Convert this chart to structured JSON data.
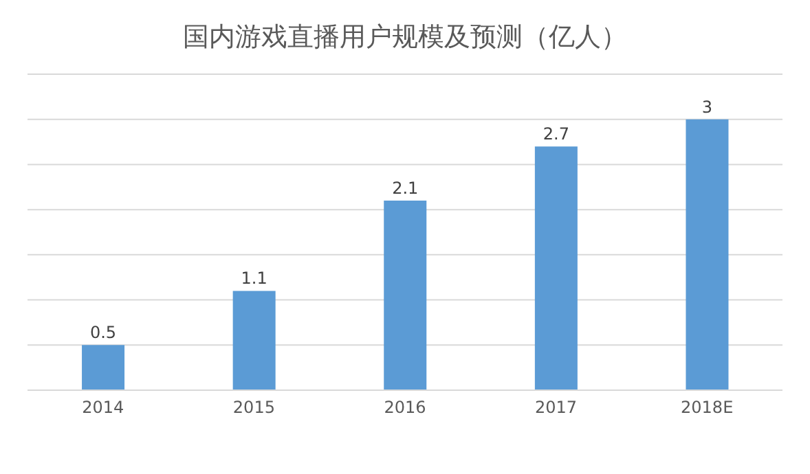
{
  "chart_data": {
    "type": "bar",
    "title": "国内游戏直播用户规模及预测（亿人）",
    "categories": [
      "2014",
      "2015",
      "2016",
      "2017",
      "2018E"
    ],
    "values": [
      0.5,
      1.1,
      2.1,
      2.7,
      3
    ],
    "color": "#5b9bd5",
    "data_labels": true,
    "ylim": [
      0,
      3.5
    ],
    "yticks": [
      {
        "value": 0,
        "label": null
      },
      {
        "value": 0.5,
        "label": null
      },
      {
        "value": 1,
        "label": null
      },
      {
        "value": 1.5,
        "label": null
      },
      {
        "value": 2,
        "label": null
      },
      {
        "value": 2.5,
        "label": null
      },
      {
        "value": 3,
        "label": null
      },
      {
        "value": 3.5,
        "label": null
      }
    ],
    "tick_labels": "x",
    "grid": "y"
  }
}
